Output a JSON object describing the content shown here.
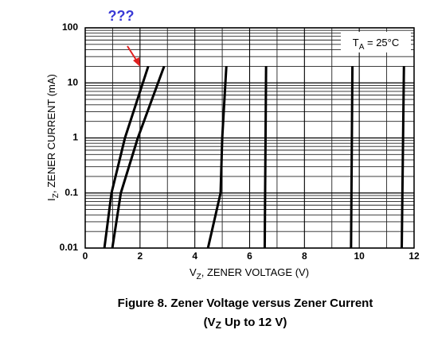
{
  "chart_data": {
    "type": "line",
    "annotation": "???",
    "condition": {
      "symbol": "T",
      "subscript": "A",
      "text": " = 25°C"
    },
    "xlabel": {
      "symbol": "V",
      "subscript": "Z",
      "text": ", ZENER VOLTAGE (V)"
    },
    "ylabel": {
      "symbol": "I",
      "subscript": "Z",
      "text": ", ZENER CURRENT (mA)"
    },
    "caption": {
      "line1": "Figure 8. Zener Voltage versus Zener Current",
      "line2": {
        "before": "(V",
        "subscript": "Z",
        "after": " Up to 12 V)"
      }
    },
    "xlim": [
      0,
      12
    ],
    "xticks": [
      0,
      2,
      4,
      6,
      8,
      10,
      12
    ],
    "minor_xticks": [
      1,
      3,
      5,
      7,
      9,
      11
    ],
    "ylim": [
      0.01,
      100
    ],
    "yticks": [
      0.01,
      0.1,
      1,
      10,
      100
    ],
    "minor_yticks": [
      0.02,
      0.03,
      0.04,
      0.05,
      0.06,
      0.07,
      0.08,
      0.09,
      0.2,
      0.3,
      0.4,
      0.5,
      0.6,
      0.7,
      0.8,
      0.9,
      2,
      3,
      4,
      5,
      6,
      7,
      8,
      9,
      20,
      30,
      40,
      50,
      60,
      70,
      80,
      90
    ],
    "log_y": true,
    "grid": true,
    "series": [
      {
        "color": "#000000",
        "x": [
          0.7,
          0.96,
          1.45,
          2.3
        ],
        "values": [
          0.01,
          0.1,
          1,
          20
        ]
      },
      {
        "color": "#000000",
        "x": [
          0.99,
          1.3,
          1.92,
          2.88
        ],
        "values": [
          0.01,
          0.1,
          1,
          20
        ]
      },
      {
        "color": "#000000",
        "x": [
          4.48,
          4.94,
          5.0,
          5.15
        ],
        "values": [
          0.01,
          0.1,
          1,
          20
        ]
      },
      {
        "color": "#000000",
        "x": [
          6.55,
          6.6
        ],
        "values": [
          0.01,
          20
        ]
      },
      {
        "color": "#000000",
        "x": [
          9.7,
          9.75
        ],
        "values": [
          0.01,
          20
        ]
      },
      {
        "color": "#000000",
        "x": [
          11.55,
          11.63
        ],
        "values": [
          0.01,
          20
        ]
      }
    ]
  }
}
